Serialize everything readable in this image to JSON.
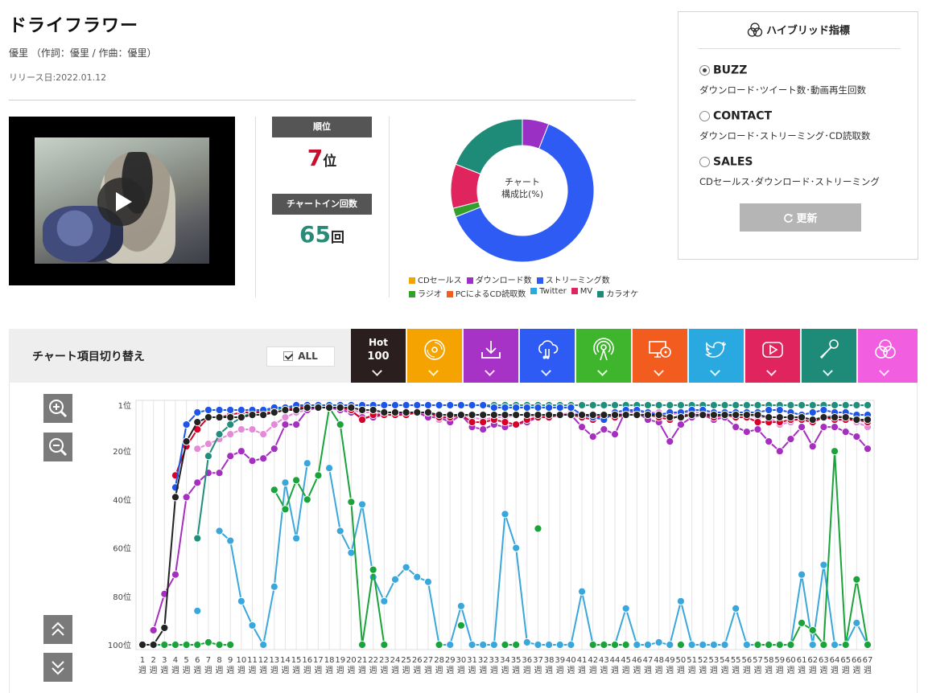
{
  "song": {
    "title": "ドライフラワー",
    "credits": "優里 （作詞：優里 / 作曲：優里）",
    "release": "リリース日:2022.01.12"
  },
  "video": {
    "play_icon": "play-icon"
  },
  "stats": {
    "rank_label": "順位",
    "rank_value": "7",
    "rank_unit": "位",
    "chartin_label": "チャートイン回数",
    "chartin_value": "65",
    "chartin_unit": "回",
    "rank_color": "#c8102e",
    "chartin_color": "#2a8a78"
  },
  "composition": {
    "center_line1": "チャート",
    "center_line2": "構成比(%)",
    "slices": [
      {
        "name": "ダウンロード数",
        "value": 6,
        "color": "#9b30c4"
      },
      {
        "name": "ストリーミング数",
        "value": 63,
        "color": "#2f5bf5"
      },
      {
        "name": "ラジオ",
        "value": 2,
        "color": "#33a02c"
      },
      {
        "name": "MV",
        "value": 10,
        "color": "#e0245e"
      },
      {
        "name": "カラオケ",
        "value": 19,
        "color": "#1e8a78"
      }
    ],
    "legend_row1": [
      {
        "label": "CDセールス",
        "color": "#f5a300"
      },
      {
        "label": "ダウンロード数",
        "color": "#9b30c4"
      },
      {
        "label": "ストリーミング数",
        "color": "#2f5bf5"
      }
    ],
    "legend_row2": [
      {
        "label": "ラジオ",
        "color": "#33a02c"
      },
      {
        "label": "PCによるCD読取数",
        "color": "#f25c1f"
      },
      {
        "label": "Twitter",
        "color": "#2aa9e0"
      },
      {
        "label": "MV",
        "color": "#e0245e"
      },
      {
        "label": "カラオケ",
        "color": "#1e8a78"
      }
    ]
  },
  "hybrid": {
    "title": "ハイブリッド指標",
    "icon": "venn-icon",
    "options": [
      {
        "label": "BUZZ",
        "desc": "ダウンロード･ツイート数･動画再生回数",
        "selected": true
      },
      {
        "label": "CONTACT",
        "desc": "ダウンロード･ストリーミング･CD読取数",
        "selected": false
      },
      {
        "label": "SALES",
        "desc": "CDセールス･ダウンロード･ストリーミング",
        "selected": false
      }
    ],
    "update_label": "更新"
  },
  "tabs": {
    "title": "チャート項目切り替え",
    "all_label": "ALL",
    "hot_line1": "Hot",
    "hot_line2": "100",
    "items": [
      {
        "name": "hot100",
        "color": "#2a1e1e"
      },
      {
        "name": "cd",
        "color": "#f5a300",
        "icon": "cd-icon"
      },
      {
        "name": "download",
        "color": "#a632c6",
        "icon": "download-icon"
      },
      {
        "name": "streaming",
        "color": "#2f5bf5",
        "icon": "streaming-icon"
      },
      {
        "name": "radio",
        "color": "#3fb52e",
        "icon": "radio-icon"
      },
      {
        "name": "pc-read",
        "color": "#f25c1f",
        "icon": "pc-cd-icon"
      },
      {
        "name": "twitter",
        "color": "#2aa9e0",
        "icon": "twitter-icon"
      },
      {
        "name": "mv",
        "color": "#e0245e",
        "icon": "mv-icon"
      },
      {
        "name": "karaoke",
        "color": "#1e8a78",
        "icon": "microphone-icon"
      },
      {
        "name": "hybrid",
        "color": "#f25ee0",
        "icon": "venn-icon"
      }
    ]
  },
  "chart_data": {
    "type": "line",
    "y_ticks": [
      "1位",
      "20位",
      "40位",
      "60位",
      "80位",
      "100位"
    ],
    "y_tick_values": [
      1,
      20,
      40,
      60,
      80,
      100
    ],
    "ylim": [
      1,
      100
    ],
    "y_inverted": true,
    "x_tick_top": [
      "1",
      "2",
      "3",
      "4",
      "5",
      "6",
      "7",
      "8",
      "9",
      "10",
      "11",
      "12",
      "13",
      "14",
      "15",
      "16",
      "17",
      "18",
      "19",
      "20",
      "21",
      "22",
      "23",
      "24",
      "25",
      "26",
      "27",
      "28",
      "29",
      "30",
      "31",
      "32",
      "33",
      "34",
      "35",
      "36",
      "37",
      "38",
      "39",
      "40",
      "41",
      "42",
      "43",
      "44",
      "45",
      "46",
      "47",
      "48",
      "49",
      "50",
      "51",
      "52",
      "53",
      "54",
      "55",
      "56",
      "57",
      "58",
      "59",
      "60",
      "61",
      "62",
      "63",
      "64",
      "65",
      "66",
      "67"
    ],
    "x_tick_bottom": "週",
    "series": [
      {
        "key": "twitter",
        "color": "#3aa7dc",
        "values": [
          null,
          null,
          null,
          null,
          null,
          86,
          null,
          53,
          57,
          82,
          92,
          100,
          76,
          33,
          56,
          25,
          null,
          27,
          53,
          62,
          42,
          72,
          82,
          73,
          68,
          72,
          74,
          100,
          100,
          84,
          100,
          100,
          100,
          46,
          60,
          99,
          100,
          100,
          100,
          100,
          78,
          100,
          100,
          100,
          85,
          100,
          100,
          99,
          100,
          82,
          100,
          100,
          100,
          100,
          85,
          100,
          100,
          100,
          100,
          100,
          71,
          100,
          67,
          100,
          100,
          91,
          100
        ]
      },
      {
        "key": "radio",
        "color": "#1aa33a",
        "values": [
          100,
          100,
          100,
          100,
          100,
          100,
          99,
          100,
          100,
          null,
          null,
          null,
          36,
          44,
          32,
          40,
          30,
          2,
          9,
          41,
          100,
          69,
          100,
          null,
          null,
          null,
          null,
          100,
          null,
          92,
          null,
          null,
          null,
          100,
          100,
          null,
          52,
          null,
          null,
          null,
          null,
          100,
          100,
          100,
          100,
          null,
          null,
          null,
          null,
          100,
          null,
          null,
          null,
          null,
          null,
          null,
          100,
          100,
          100,
          100,
          91,
          94,
          100,
          20,
          100,
          73,
          100
        ]
      },
      {
        "key": "hybrid",
        "color": "#e58ad8",
        "values": [
          null,
          null,
          null,
          null,
          null,
          19,
          17,
          15,
          13,
          11,
          11,
          13,
          9,
          6,
          4,
          3,
          2,
          2,
          3,
          3,
          4,
          4,
          5,
          5,
          4,
          4,
          5,
          7,
          6,
          5,
          6,
          7,
          6,
          6,
          5,
          5,
          6,
          5,
          5,
          4,
          5,
          6,
          5,
          5,
          4,
          4,
          4,
          4,
          5,
          4,
          4,
          4,
          5,
          5,
          5,
          5,
          6,
          6,
          9,
          8,
          6,
          7,
          6,
          5,
          6,
          8,
          10
        ]
      },
      {
        "key": "download",
        "color": "#a62fc0",
        "values": [
          null,
          94,
          79,
          71,
          39,
          33,
          29,
          29,
          22,
          20,
          24,
          23,
          19,
          9,
          9,
          3,
          2,
          2,
          3,
          4,
          6,
          6,
          5,
          5,
          4,
          4,
          6,
          6,
          8,
          5,
          10,
          11,
          9,
          10,
          9,
          8,
          6,
          6,
          5,
          5,
          10,
          14,
          11,
          13,
          3,
          4,
          7,
          8,
          16,
          9,
          6,
          5,
          7,
          6,
          10,
          12,
          11,
          16,
          20,
          15,
          10,
          18,
          10,
          10,
          12,
          14,
          19
        ]
      },
      {
        "key": "karaoke",
        "color": "#1f8e7b",
        "values": [
          null,
          null,
          null,
          null,
          null,
          56,
          22,
          13,
          9,
          6,
          4,
          3,
          3,
          2,
          2,
          1,
          1,
          1,
          1,
          1,
          1,
          1,
          1,
          1,
          1,
          1,
          1,
          1,
          1,
          1,
          1,
          1,
          1,
          1,
          1,
          1,
          1,
          1,
          1,
          1,
          1,
          1,
          1,
          1,
          1,
          1,
          1,
          1,
          1,
          1,
          1,
          1,
          1,
          1,
          1,
          1,
          1,
          1,
          1,
          1,
          1,
          1,
          1,
          1,
          1,
          1,
          1
        ]
      },
      {
        "key": "mv",
        "color": "#d6002a",
        "values": [
          null,
          null,
          null,
          30,
          18,
          11,
          6,
          6,
          5,
          4,
          4,
          4,
          4,
          3,
          2,
          2,
          2,
          2,
          2,
          3,
          7,
          5,
          5,
          5,
          5,
          4,
          4,
          6,
          6,
          5,
          8,
          8,
          7,
          8,
          9,
          7,
          6,
          6,
          5,
          5,
          6,
          7,
          5,
          6,
          5,
          5,
          5,
          6,
          7,
          5,
          5,
          5,
          6,
          5,
          6,
          6,
          8,
          8,
          8,
          7,
          7,
          8,
          6,
          7,
          7,
          7,
          8
        ]
      },
      {
        "key": "streaming",
        "color": "#1c55e8",
        "values": [
          null,
          null,
          null,
          35,
          9,
          4,
          3,
          3,
          3,
          3,
          3,
          3,
          2,
          2,
          1,
          1,
          1,
          1,
          1,
          1,
          1,
          1,
          1,
          1,
          1,
          1,
          1,
          1,
          1,
          1,
          1,
          1,
          2,
          2,
          2,
          2,
          2,
          2,
          2,
          2,
          5,
          6,
          7,
          4,
          3,
          3,
          4,
          5,
          4,
          4,
          3,
          3,
          4,
          4,
          4,
          4,
          4,
          3,
          3,
          4,
          5,
          4,
          3,
          4,
          4,
          5,
          5
        ]
      },
      {
        "key": "hot100",
        "color": "#222222",
        "values": [
          100,
          100,
          93,
          39,
          16,
          8,
          6,
          6,
          6,
          6,
          5,
          5,
          4,
          3,
          3,
          2,
          2,
          2,
          2,
          2,
          3,
          3,
          4,
          4,
          4,
          4,
          4,
          5,
          5,
          5,
          5,
          5,
          5,
          5,
          5,
          5,
          5,
          5,
          5,
          5,
          5,
          5,
          5,
          5,
          5,
          5,
          5,
          5,
          6,
          6,
          5,
          5,
          5,
          5,
          5,
          5,
          5,
          6,
          6,
          6,
          6,
          7,
          6,
          6,
          6,
          7,
          7
        ]
      }
    ]
  },
  "side_buttons": {
    "zoom_in": "zoom-in-icon",
    "zoom_out": "zoom-out-icon",
    "scroll_top": "double-chevron-up-icon",
    "scroll_bottom": "double-chevron-down-icon"
  }
}
